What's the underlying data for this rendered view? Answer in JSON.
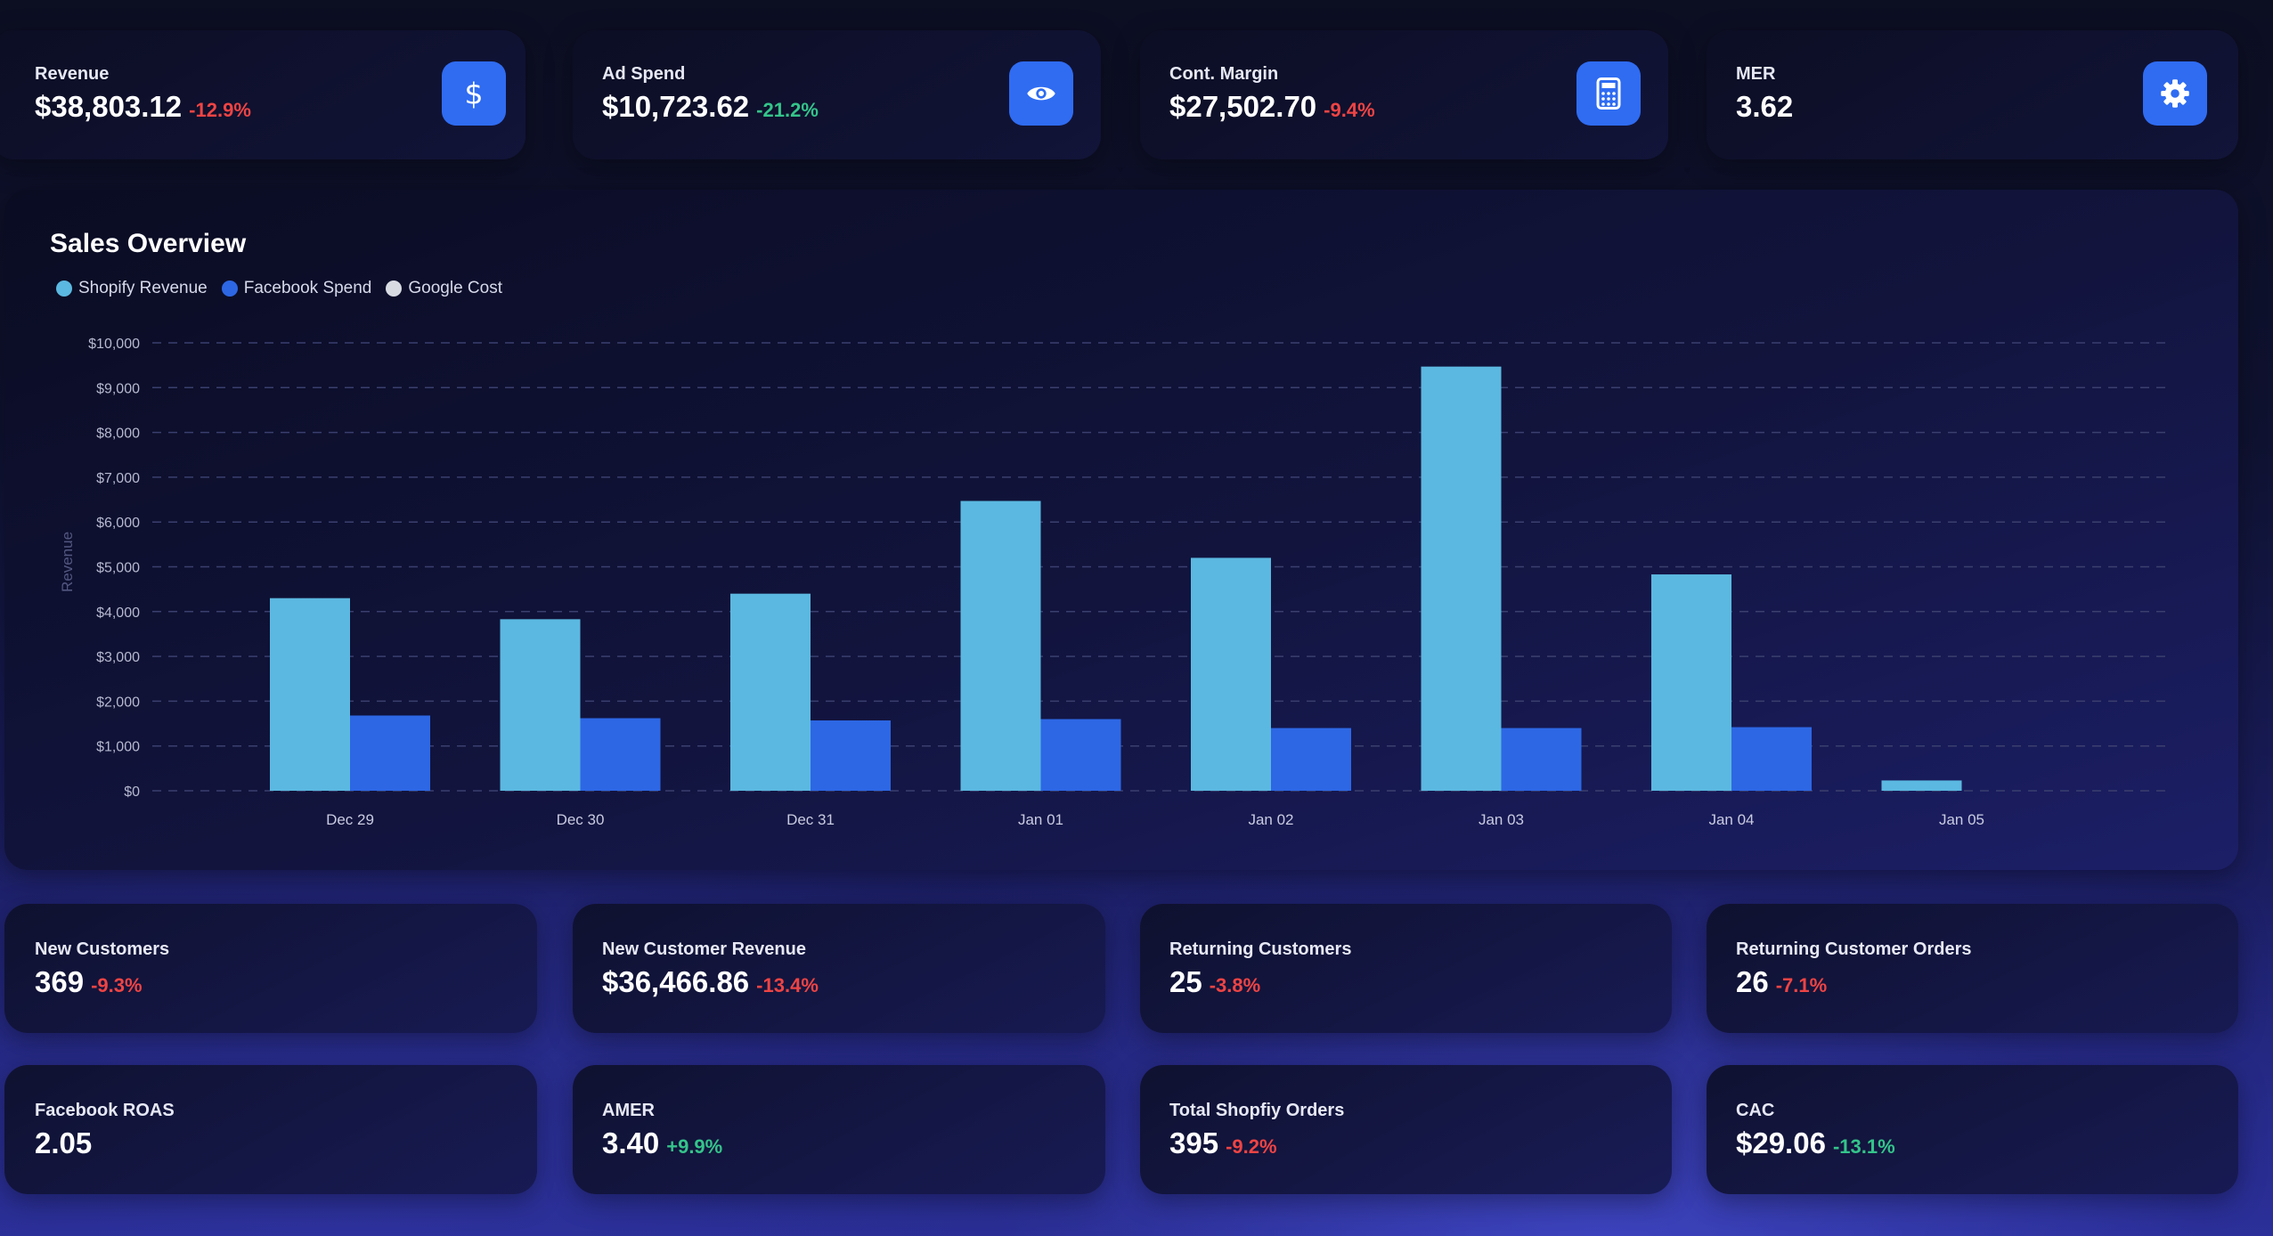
{
  "top_kpis": [
    {
      "label": "Revenue",
      "value": "$38,803.12",
      "change": "-12.9%",
      "trend": "negative",
      "icon": "dollar-icon"
    },
    {
      "label": "Ad Spend",
      "value": "$10,723.62",
      "change": "-21.2%",
      "trend": "positive",
      "icon": "eye-icon"
    },
    {
      "label": "Cont. Margin",
      "value": "$27,502.70",
      "change": "-9.4%",
      "trend": "negative",
      "icon": "calculator-icon"
    },
    {
      "label": "MER",
      "value": "3.62",
      "change": "",
      "trend": "none",
      "icon": "gear-icon"
    }
  ],
  "chart": {
    "title": "Sales Overview",
    "legend": [
      {
        "label": "Shopify Revenue",
        "color": "#5bb8e0"
      },
      {
        "label": "Facebook Spend",
        "color": "#2d67e4"
      },
      {
        "label": "Google Cost",
        "color": "#d9dbe3"
      }
    ],
    "ylabel": "Revenue"
  },
  "chart_data": {
    "type": "bar",
    "title": "Sales Overview",
    "xlabel": "",
    "ylabel": "Revenue",
    "ylim": [
      0,
      10000
    ],
    "ytick_values": [
      0,
      1000,
      2000,
      3000,
      4000,
      5000,
      6000,
      7000,
      8000,
      9000,
      10000
    ],
    "ytick_labels": [
      "$0",
      "$1,000",
      "$2,000",
      "$3,000",
      "$4,000",
      "$5,000",
      "$6,000",
      "$7,000",
      "$8,000",
      "$9,000",
      "$10,000"
    ],
    "categories": [
      "Dec 29",
      "Dec 30",
      "Dec 31",
      "Jan 01",
      "Jan 02",
      "Jan 03",
      "Jan 04",
      "Jan 05"
    ],
    "series": [
      {
        "name": "Shopify Revenue",
        "color": "#5bb8e0",
        "values": [
          4300,
          3830,
          4400,
          6470,
          5200,
          9470,
          4830,
          230
        ]
      },
      {
        "name": "Facebook Spend",
        "color": "#2d67e4",
        "values": [
          1680,
          1620,
          1570,
          1600,
          1400,
          1400,
          1420,
          0
        ]
      },
      {
        "name": "Google Cost",
        "color": "#d9dbe3",
        "values": [
          0,
          0,
          0,
          0,
          0,
          0,
          0,
          0
        ]
      }
    ],
    "grid": true,
    "legend_position": "top-left"
  },
  "bottom_kpis_row1": [
    {
      "label": "New Customers",
      "value": "369",
      "change": "-9.3%",
      "trend": "negative"
    },
    {
      "label": "New Customer Revenue",
      "value": "$36,466.86",
      "change": "-13.4%",
      "trend": "negative"
    },
    {
      "label": "Returning Customers",
      "value": "25",
      "change": "-3.8%",
      "trend": "negative"
    },
    {
      "label": "Returning Customer Orders",
      "value": "26",
      "change": "-7.1%",
      "trend": "negative"
    }
  ],
  "bottom_kpis_row2": [
    {
      "label": "Facebook ROAS",
      "value": "2.05",
      "change": "",
      "trend": "none"
    },
    {
      "label": "AMER",
      "value": "3.40",
      "change": "+9.9%",
      "trend": "positive"
    },
    {
      "label": "Total Shopfiy Orders",
      "value": "395",
      "change": "-9.2%",
      "trend": "negative"
    },
    {
      "label": "CAC",
      "value": "$29.06",
      "change": "-13.1%",
      "trend": "positive"
    }
  ]
}
